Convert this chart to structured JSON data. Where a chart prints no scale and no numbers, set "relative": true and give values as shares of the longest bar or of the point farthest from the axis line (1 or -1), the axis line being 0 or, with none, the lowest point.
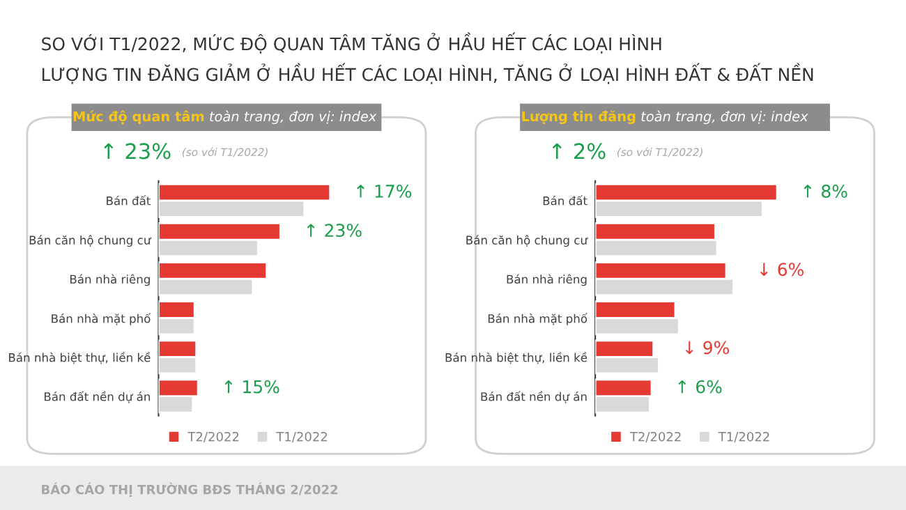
{
  "chart_data": [
    {
      "type": "bar",
      "orientation": "horizontal",
      "relative": true,
      "title": "Mức độ quan tâm",
      "subtitle": "toàn trang, đơn vị: index",
      "categories": [
        "Bán đất",
        "Bán căn hộ chung cư",
        "Bán nhà riêng",
        "Bán nhà mặt phố",
        "Bán nhà biệt thự, liền kề",
        "Bán đất nền dự án"
      ],
      "series": [
        {
          "name": "T2/2022",
          "color": "#e53a33",
          "values": [
            1.0,
            0.71,
            0.63,
            0.21,
            0.22,
            0.23
          ]
        },
        {
          "name": "T1/2022",
          "color": "#d9d9d9",
          "values": [
            0.85,
            0.58,
            0.55,
            0.21,
            0.22,
            0.2
          ]
        }
      ],
      "legend": "bottom",
      "annotations": [
        "SO VỚI T1/2022, MỨC ĐỘ QUAN TÂM TĂNG Ở HẦU HẾT CÁC LOẠI HÌNH",
        "LƯỢNG TIN ĐĂNG GIẢM Ở HẦU HẾT CÁC LOẠI HÌNH, TĂNG Ở LOẠI HÌNH ĐẤT & ĐẤT NỀN",
        "↑ 23%",
        "(so với T1/2022)",
        "↑ 17%",
        "↑ 23%",
        "↑ 15%"
      ]
    },
    {
      "type": "bar",
      "orientation": "horizontal",
      "relative": true,
      "title": "Lượng tin đăng",
      "subtitle": "toàn trang, đơn vị: index",
      "categories": [
        "Bán đất",
        "Bán căn hộ chung cư",
        "Bán nhà riêng",
        "Bán nhà mặt phố",
        "Bán nhà biệt thự, liền kề",
        "Bán đất nền dự án"
      ],
      "series": [
        {
          "name": "T2/2022",
          "color": "#e53a33",
          "values": [
            1.0,
            0.66,
            0.72,
            0.44,
            0.32,
            0.31
          ]
        },
        {
          "name": "T1/2022",
          "color": "#d9d9d9",
          "values": [
            0.92,
            0.67,
            0.76,
            0.46,
            0.35,
            0.3
          ]
        }
      ],
      "legend": "bottom",
      "annotations": [
        "BÁO CÁO THỊ TRƯỜNG BĐS THÁNG 2/2022",
        "↑ 2%",
        "(so với T1/2022)",
        "↑ 8%",
        "↓ 6%",
        "↓ 9%",
        "↑ 6%"
      ]
    }
  ]
}
